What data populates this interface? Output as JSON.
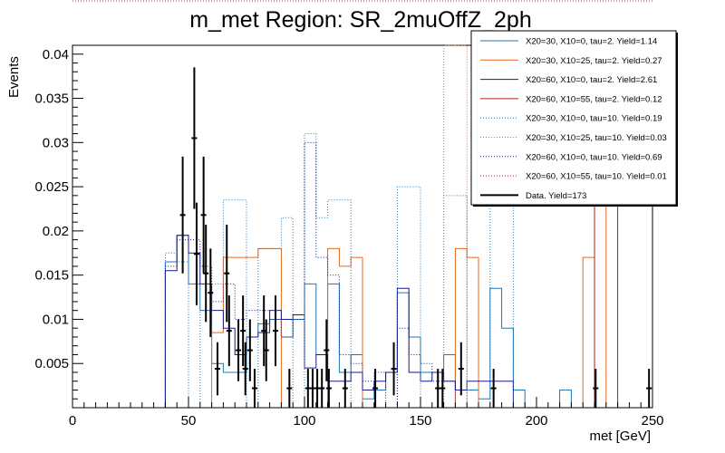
{
  "chart_data": {
    "type": "line",
    "title": "m_met Region: SR_2muOffZ_2ph",
    "xlabel": "met [GeV]",
    "ylabel": "Events",
    "xlim": [
      0,
      250
    ],
    "ylim": [
      0,
      0.041
    ],
    "x_ticks": [
      0,
      50,
      100,
      150,
      200,
      250
    ],
    "x_tick_labels": [
      "0",
      "50",
      "100",
      "150",
      "200",
      "250"
    ],
    "y_ticks": [
      0.005,
      0.01,
      0.015,
      0.02,
      0.025,
      0.03,
      0.035,
      0.04
    ],
    "y_tick_labels": [
      "0.005",
      "0.01",
      "0.015",
      "0.02",
      "0.025",
      "0.03",
      "0.035",
      "0.04"
    ],
    "bin_width": 5,
    "legend_position": "top-right",
    "series": [
      {
        "name": "X20=30, X10=0, tau=2. Yield=1.14",
        "color": "#1f77b4",
        "style": "solid",
        "bins": [
          [
            40,
            0.0165
          ],
          [
            45,
            0.0195
          ],
          [
            50,
            0.014
          ],
          [
            55,
            0.011
          ],
          [
            60,
            0.005
          ],
          [
            65,
            0.004
          ],
          [
            70,
            0.004
          ],
          [
            75,
            0.008
          ],
          [
            80,
            0.0095
          ],
          [
            85,
            0.01
          ],
          [
            90,
            0.008
          ],
          [
            95,
            0.01
          ],
          [
            100,
            0.014
          ],
          [
            105,
            0.006
          ],
          [
            110,
            0.014
          ],
          [
            115,
            0.004
          ],
          [
            120,
            0.006
          ],
          [
            125,
            0.001
          ],
          [
            130,
            0.002
          ],
          [
            135,
            0.004
          ],
          [
            140,
            0.013
          ],
          [
            145,
            0.008
          ],
          [
            150,
            0.004
          ],
          [
            155,
            0.004
          ],
          [
            160,
            0.006
          ],
          [
            165,
            0.002
          ],
          [
            170,
            0.002
          ],
          [
            175,
            0.001
          ],
          [
            180,
            0.0135
          ],
          [
            185,
            0.009
          ],
          [
            190,
            0.002
          ],
          [
            210,
            0.002
          ]
        ]
      },
      {
        "name": "X20=30, X10=25, tau=2. Yield=0.27",
        "color": "#e8671c",
        "style": "solid",
        "bins": [
          [
            60,
            0.0085
          ],
          [
            65,
            0.017
          ],
          [
            70,
            0.017
          ],
          [
            75,
            0.017
          ],
          [
            80,
            0.018
          ],
          [
            85,
            0.018
          ],
          [
            110,
            0.018
          ],
          [
            115,
            0.016
          ],
          [
            120,
            0.017
          ],
          [
            165,
            0.018
          ],
          [
            170,
            0.017
          ],
          [
            220,
            0.017
          ],
          [
            225,
            0.024
          ]
        ]
      },
      {
        "name": "X20=60, X10=0, tau=2. Yield=2.61",
        "color": "#1a1a8c",
        "style": "solid",
        "bins": [
          [
            40,
            0.0155
          ],
          [
            45,
            0.0195
          ],
          [
            50,
            0.0175
          ],
          [
            55,
            0.014
          ],
          [
            60,
            0.011
          ],
          [
            65,
            0.009
          ],
          [
            70,
            0.006
          ],
          [
            75,
            0.008
          ],
          [
            80,
            0.0085
          ],
          [
            85,
            0.011
          ],
          [
            90,
            0.01
          ],
          [
            95,
            0.0105
          ],
          [
            100,
            0.0045
          ],
          [
            105,
            0.006
          ],
          [
            110,
            0.003
          ],
          [
            115,
            0.003
          ],
          [
            120,
            0.004
          ],
          [
            125,
            0.002
          ],
          [
            130,
            0.003
          ],
          [
            135,
            0.004
          ],
          [
            140,
            0.0135
          ],
          [
            145,
            0.004
          ],
          [
            150,
            0.003
          ],
          [
            155,
            0.004
          ],
          [
            160,
            0.003
          ],
          [
            165,
            0.002
          ],
          [
            170,
            0.003
          ],
          [
            175,
            0.003
          ],
          [
            180,
            0.003
          ],
          [
            185,
            0.003
          ]
        ]
      },
      {
        "name": "X20=60, X10=55, tau=2. Yield=0.12",
        "color": "#b81c1c",
        "style": "solid",
        "bins": [
          [
            225,
            0.024
          ],
          [
            230,
            0.024
          ]
        ]
      },
      {
        "name": "X20=30, X10=0, tau=10. Yield=0.19",
        "color": "#1f77b4",
        "style": "dotted",
        "bins": [
          [
            40,
            0.0175
          ],
          [
            45,
            0.0165
          ],
          [
            55,
            0.011
          ],
          [
            60,
            0.014
          ],
          [
            65,
            0.0235
          ],
          [
            70,
            0.0235
          ],
          [
            80,
            0.018
          ],
          [
            85,
            0.018
          ],
          [
            90,
            0.0215
          ],
          [
            100,
            0.031
          ],
          [
            105,
            0.0215
          ],
          [
            110,
            0.0235
          ],
          [
            115,
            0.0235
          ],
          [
            140,
            0.025
          ],
          [
            145,
            0.025
          ],
          [
            160,
            0.024
          ],
          [
            165,
            0.024
          ],
          [
            180,
            0.024
          ],
          [
            185,
            0.024
          ]
        ]
      },
      {
        "name": "X20=30, X10=25, tau=10. Yield=0.03",
        "color": "#e8671c",
        "style": "dotted",
        "bins": [
          [
            160,
            0.041
          ],
          [
            165,
            0.041
          ]
        ]
      },
      {
        "name": "X20=60, X10=0, tau=10. Yield=0.69",
        "color": "#1a1a8c",
        "style": "dotted",
        "bins": [
          [
            40,
            0.016
          ],
          [
            45,
            0.019
          ],
          [
            50,
            0.019
          ],
          [
            55,
            0.016
          ],
          [
            60,
            0.012
          ],
          [
            65,
            0.014
          ],
          [
            70,
            0.01
          ],
          [
            75,
            0.011
          ],
          [
            80,
            0.011
          ],
          [
            85,
            0.01
          ],
          [
            90,
            0.008
          ],
          [
            95,
            0.01
          ],
          [
            100,
            0.03
          ],
          [
            105,
            0.017
          ],
          [
            110,
            0.015
          ],
          [
            115,
            0.006
          ],
          [
            120,
            0.005
          ],
          [
            125,
            0.003
          ],
          [
            130,
            0.004
          ],
          [
            140,
            0.009
          ],
          [
            145,
            0.006
          ],
          [
            150,
            0.005
          ],
          [
            155,
            0.003
          ],
          [
            160,
            0.003
          ]
        ]
      },
      {
        "name": "X20=60, X10=55, tau=10. Yield=0.01",
        "color": "#b81c1c",
        "style": "dotted",
        "bins": []
      },
      {
        "name": "Data. Yield=173",
        "color": "#000000",
        "style": "data",
        "points": [
          {
            "x": 47.5,
            "y": 0.0218,
            "err": 0.0066
          },
          {
            "x": 52.5,
            "y": 0.0305,
            "err": 0.008
          },
          {
            "x": 53.5,
            "y": 0.0174,
            "err": 0.0058
          },
          {
            "x": 56.5,
            "y": 0.0218,
            "err": 0.0066
          },
          {
            "x": 57.5,
            "y": 0.0152,
            "err": 0.0055
          },
          {
            "x": 59.5,
            "y": 0.013,
            "err": 0.005
          },
          {
            "x": 62.5,
            "y": 0.0044,
            "err": 0.003
          },
          {
            "x": 66.5,
            "y": 0.0152,
            "err": 0.0055
          },
          {
            "x": 67.5,
            "y": 0.0087,
            "err": 0.004
          },
          {
            "x": 71.5,
            "y": 0.0065,
            "err": 0.0035
          },
          {
            "x": 73.5,
            "y": 0.0087,
            "err": 0.004
          },
          {
            "x": 74.5,
            "y": 0.0044,
            "err": 0.003
          },
          {
            "x": 76.5,
            "y": 0.0065,
            "err": 0.0035
          },
          {
            "x": 78.5,
            "y": 0.0022,
            "err": 0.0022
          },
          {
            "x": 82.5,
            "y": 0.0087,
            "err": 0.004
          },
          {
            "x": 83.5,
            "y": 0.0065,
            "err": 0.0035
          },
          {
            "x": 87.5,
            "y": 0.0087,
            "err": 0.004
          },
          {
            "x": 93.5,
            "y": 0.0022,
            "err": 0.0022
          },
          {
            "x": 101.5,
            "y": 0.0022,
            "err": 0.0022
          },
          {
            "x": 103.5,
            "y": 0.0022,
            "err": 0.0022
          },
          {
            "x": 105.5,
            "y": 0.0022,
            "err": 0.0022
          },
          {
            "x": 107.5,
            "y": 0.0022,
            "err": 0.0022
          },
          {
            "x": 109.5,
            "y": 0.0065,
            "err": 0.0035
          },
          {
            "x": 110.5,
            "y": 0.0022,
            "err": 0.0022
          },
          {
            "x": 117.5,
            "y": 0.0022,
            "err": 0.0022
          },
          {
            "x": 130.5,
            "y": 0.0022,
            "err": 0.0022
          },
          {
            "x": 138.5,
            "y": 0.0044,
            "err": 0.003
          },
          {
            "x": 157.5,
            "y": 0.0022,
            "err": 0.0022
          },
          {
            "x": 159.5,
            "y": 0.0022,
            "err": 0.0022
          },
          {
            "x": 167.5,
            "y": 0.0044,
            "err": 0.003
          },
          {
            "x": 181.5,
            "y": 0.0022,
            "err": 0.0022
          },
          {
            "x": 225.5,
            "y": 0.0022,
            "err": 0.0022
          },
          {
            "x": 248.5,
            "y": 0.0022,
            "err": 0.0022
          }
        ]
      }
    ]
  }
}
